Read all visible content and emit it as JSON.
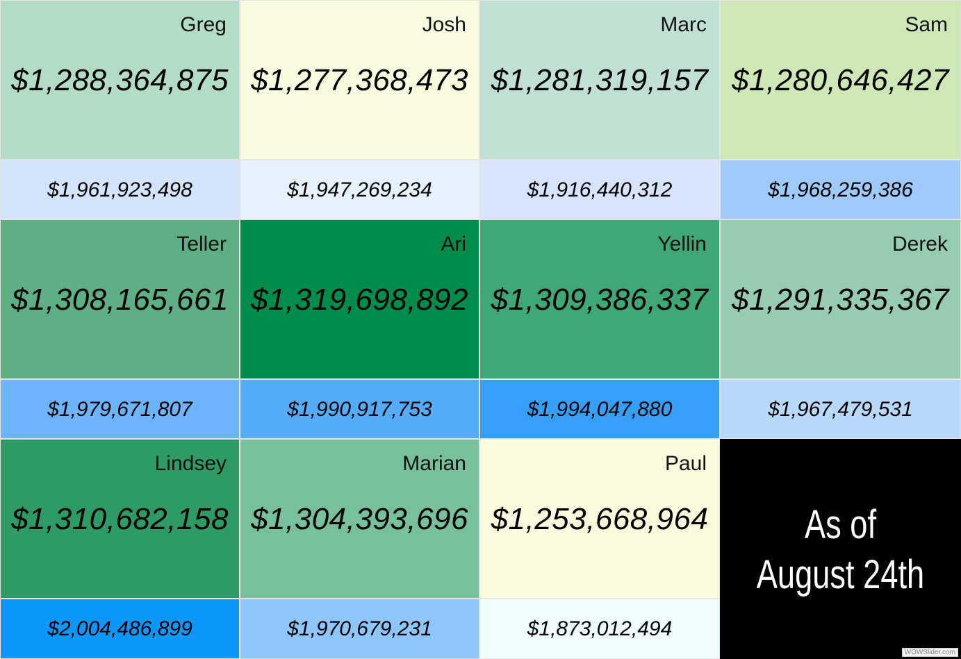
{
  "tiles": [
    {
      "name": "Greg",
      "value": "$1,288,364,875",
      "sub_value": "$1,961,923,498",
      "color": "#b3dcc6",
      "sub_color": "#d3e5fc"
    },
    {
      "name": "Josh",
      "value": "$1,277,368,473",
      "sub_value": "$1,947,269,234",
      "color": "#f9fbdf",
      "sub_color": "#e6f1fe"
    },
    {
      "name": "Marc",
      "value": "$1,281,319,157",
      "sub_value": "$1,916,440,312",
      "color": "#bfe0d3",
      "sub_color": "#d6e4fd"
    },
    {
      "name": "Sam",
      "value": "$1,280,646,427",
      "sub_value": "$1,968,259,386",
      "color": "#cde8b6",
      "sub_color": "#9ecbfb"
    },
    {
      "name": "Teller",
      "value": "$1,308,165,661",
      "sub_value": "$1,979,671,807",
      "color": "#5eaf84",
      "sub_color": "#6cb4fb"
    },
    {
      "name": "Ari",
      "value": "$1,319,698,892",
      "sub_value": "$1,990,917,753",
      "color": "#008c4a",
      "sub_color": "#55acfb"
    },
    {
      "name": "Yellin",
      "value": "$1,309,386,337",
      "sub_value": "$1,994,047,880",
      "color": "#40a877",
      "sub_color": "#369ffb"
    },
    {
      "name": "Derek",
      "value": "$1,291,335,367",
      "sub_value": "$1,967,479,531",
      "color": "#96ccb1",
      "sub_color": "#b8d8fc"
    },
    {
      "name": "Lindsey",
      "value": "$1,310,682,158",
      "sub_value": "$2,004,486,899",
      "color": "#2e9b64",
      "sub_color": "#0b97fb"
    },
    {
      "name": "Marian",
      "value": "$1,304,393,696",
      "sub_value": "$1,970,679,231",
      "color": "#78c09c",
      "sub_color": "#8ec5fb"
    },
    {
      "name": "Paul",
      "value": "$1,253,668,964",
      "sub_value": "$1,873,012,494",
      "color": "#f9fbdc",
      "sub_color": "#effdfe"
    }
  ],
  "date_tile": {
    "lines": [
      "As of",
      "August 24th"
    ],
    "color": "#000000"
  },
  "watermark": "WOWSlider.com"
}
